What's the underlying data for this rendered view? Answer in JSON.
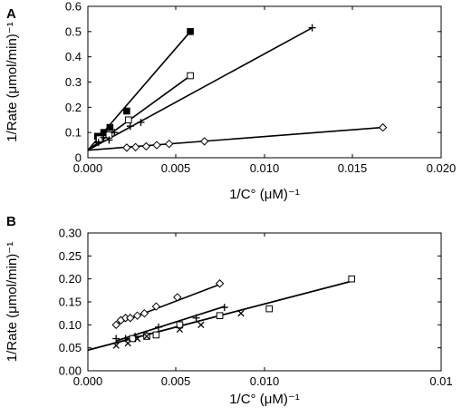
{
  "chart_data": [
    {
      "type": "scatter",
      "panel_label": "A",
      "xlabel": "1/C° (μM)⁻¹",
      "ylabel": "1/Rate (μmol/min)⁻¹",
      "xlim": [
        0,
        0.02
      ],
      "ylim": [
        0,
        0.6
      ],
      "x_ticks": [
        "0.000",
        "0.005",
        "0.010",
        "0.015",
        "0.020"
      ],
      "y_ticks": [
        "0",
        "0.1",
        "0.2",
        "0.3",
        "0.4",
        "0.5",
        "0.6"
      ],
      "grid": false,
      "series": [
        {
          "marker": "filled-square",
          "x": [
            0.00055,
            0.0009,
            0.00125,
            0.0022,
            0.0058
          ],
          "y": [
            0.085,
            0.1,
            0.12,
            0.185,
            0.5
          ],
          "fit": [
            [
              0,
              0.03
            ],
            [
              0.0058,
              0.5
            ]
          ]
        },
        {
          "marker": "open-square",
          "x": [
            0.00065,
            0.0012,
            0.0023,
            0.0058
          ],
          "y": [
            0.075,
            0.09,
            0.15,
            0.325
          ],
          "fit": [
            [
              0,
              0.03
            ],
            [
              0.0058,
              0.325
            ]
          ]
        },
        {
          "marker": "plus",
          "x": [
            0.0006,
            0.0009,
            0.0012,
            0.0015,
            0.0024,
            0.003,
            0.0127
          ],
          "y": [
            0.06,
            0.08,
            0.07,
            0.1,
            0.125,
            0.14,
            0.515
          ],
          "fit": [
            [
              0,
              0.03
            ],
            [
              0.0127,
              0.515
            ]
          ]
        },
        {
          "marker": "open-diamond",
          "x": [
            0.0022,
            0.0027,
            0.0033,
            0.0039,
            0.0046,
            0.0066,
            0.0167
          ],
          "y": [
            0.04,
            0.042,
            0.045,
            0.05,
            0.055,
            0.065,
            0.12
          ],
          "fit": [
            [
              0,
              0.03
            ],
            [
              0.0167,
              0.12
            ]
          ]
        }
      ]
    },
    {
      "type": "scatter",
      "panel_label": "B",
      "xlabel": "1/C° (μM)⁻¹",
      "ylabel": "1/Rate (μmol/min)⁻¹",
      "xlim": [
        0,
        0.015
      ],
      "ylim": [
        0,
        0.3
      ],
      "x_ticks": [
        "0.000",
        "0.005",
        "0.010",
        "0.01"
      ],
      "y_ticks": [
        "0.00",
        "0.05",
        "0.10",
        "0.15",
        "0.20",
        "0.25",
        "0.30"
      ],
      "grid": false,
      "series": [
        {
          "marker": "open-diamond",
          "x": [
            0.0012,
            0.0014,
            0.0016,
            0.0018,
            0.0021,
            0.0024,
            0.0029,
            0.0038,
            0.0056
          ],
          "y": [
            0.1,
            0.11,
            0.115,
            0.115,
            0.12,
            0.125,
            0.14,
            0.16,
            0.19
          ],
          "fit": [
            [
              0.0011,
              0.1
            ],
            [
              0.0057,
              0.19
            ]
          ]
        },
        {
          "marker": "plus",
          "x": [
            0.0012,
            0.0016,
            0.002,
            0.0025,
            0.003,
            0.004,
            0.0046,
            0.0058
          ],
          "y": [
            0.07,
            0.07,
            0.075,
            0.08,
            0.095,
            0.1,
            0.115,
            0.138
          ],
          "fit": [
            [
              0.0012,
              0.065
            ],
            [
              0.0058,
              0.14
            ]
          ]
        },
        {
          "marker": "open-square",
          "x": [
            0.0019,
            0.0025,
            0.0029,
            0.0039,
            0.0056,
            0.0077,
            0.0112
          ],
          "y": [
            0.07,
            0.075,
            0.078,
            0.1,
            0.12,
            0.135,
            0.2
          ],
          "fit": [
            [
              0,
              0.045
            ],
            [
              0.0112,
              0.195
            ]
          ]
        },
        {
          "marker": "cross",
          "x": [
            0.0012,
            0.0017,
            0.0021,
            0.0025,
            0.0039,
            0.0048,
            0.0065
          ],
          "y": [
            0.055,
            0.06,
            0.07,
            0.075,
            0.09,
            0.1,
            0.125
          ],
          "fit": [
            [
              0,
              0.045
            ],
            [
              0.0112,
              0.195
            ]
          ]
        }
      ]
    }
  ]
}
